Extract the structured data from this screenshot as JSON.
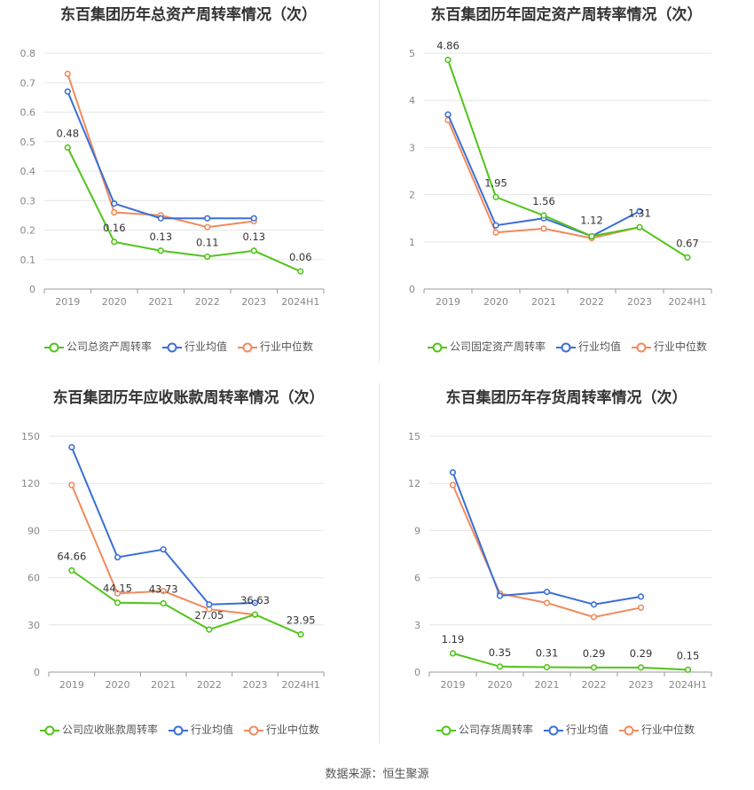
{
  "source": "数据来源：恒生聚源",
  "colors": {
    "company": "#52c41a",
    "avg": "#3a6fd8",
    "median": "#f08a5d"
  },
  "charts": [
    {
      "id": "c1",
      "title": "东百集团历年总资产周转率情况（次）",
      "legend": [
        "公司总资产周转率",
        "行业均值",
        "行业中位数"
      ]
    },
    {
      "id": "c2",
      "title": "东百集团历年固定资产周转率情况（次）",
      "legend": [
        "公司固定资产周转率",
        "行业均值",
        "行业中位数"
      ]
    },
    {
      "id": "c3",
      "title": "东百集团历年应收账款周转率情况（次）",
      "legend": [
        "公司应收账款周转率",
        "行业均值",
        "行业中位数"
      ]
    },
    {
      "id": "c4",
      "title": "东百集团历年存货周转率情况（次）",
      "legend": [
        "公司存货周转率",
        "行业均值",
        "行业中位数"
      ]
    }
  ],
  "chart_data": [
    {
      "type": "line",
      "title": "东百集团历年总资产周转率情况（次）",
      "categories": [
        "2019",
        "2020",
        "2021",
        "2022",
        "2023",
        "2024H1"
      ],
      "ylim": [
        0,
        0.8
      ],
      "yticks": [
        "0",
        "0.1",
        "0.2",
        "0.3",
        "0.4",
        "0.5",
        "0.6",
        "0.7",
        "0.8"
      ],
      "series": [
        {
          "name": "公司总资产周转率",
          "values": [
            0.48,
            0.16,
            0.13,
            0.11,
            0.13,
            0.06
          ],
          "labels": [
            "0.48",
            "0.16",
            "0.13",
            "0.11",
            "0.13",
            "0.06"
          ]
        },
        {
          "name": "行业均值",
          "values": [
            0.67,
            0.29,
            0.24,
            0.24,
            0.24,
            null
          ]
        },
        {
          "name": "行业中位数",
          "values": [
            0.73,
            0.26,
            0.25,
            0.21,
            0.23,
            null
          ]
        }
      ]
    },
    {
      "type": "line",
      "title": "东百集团历年固定资产周转率情况（次）",
      "categories": [
        "2019",
        "2020",
        "2021",
        "2022",
        "2023",
        "2024H1"
      ],
      "ylim": [
        0,
        5
      ],
      "yticks": [
        "0",
        "1",
        "2",
        "3",
        "4",
        "5"
      ],
      "series": [
        {
          "name": "公司固定资产周转率",
          "values": [
            4.86,
            1.95,
            1.56,
            1.12,
            1.31,
            0.67
          ],
          "labels": [
            "4.86",
            "1.95",
            "1.56",
            "1.12",
            "1.31",
            "0.67"
          ]
        },
        {
          "name": "行业均值",
          "values": [
            3.7,
            1.35,
            1.5,
            1.12,
            1.65,
            null
          ]
        },
        {
          "name": "行业中位数",
          "values": [
            3.58,
            1.2,
            1.28,
            1.08,
            1.31,
            null
          ]
        }
      ]
    },
    {
      "type": "line",
      "title": "东百集团历年应收账款周转率情况（次）",
      "categories": [
        "2019",
        "2020",
        "2021",
        "2022",
        "2023",
        "2024H1"
      ],
      "ylim": [
        0,
        150
      ],
      "yticks": [
        "0",
        "30",
        "60",
        "90",
        "120",
        "150"
      ],
      "series": [
        {
          "name": "公司应收账款周转率",
          "values": [
            64.66,
            44.15,
            43.73,
            27.05,
            36.63,
            23.95
          ],
          "labels": [
            "64.66",
            "44.15",
            "43.73",
            "27.05",
            "36.63",
            "23.95"
          ]
        },
        {
          "name": "行业均值",
          "values": [
            143,
            73,
            78,
            43,
            44,
            null
          ]
        },
        {
          "name": "行业中位数",
          "values": [
            119,
            50,
            51.5,
            40,
            36.5,
            null
          ]
        }
      ]
    },
    {
      "type": "line",
      "title": "东百集团历年存货周转率情况（次）",
      "categories": [
        "2019",
        "2020",
        "2021",
        "2022",
        "2023",
        "2024H1"
      ],
      "ylim": [
        0,
        15
      ],
      "yticks": [
        "0",
        "3",
        "6",
        "9",
        "12",
        "15"
      ],
      "series": [
        {
          "name": "公司存货周转率",
          "values": [
            1.19,
            0.35,
            0.31,
            0.29,
            0.29,
            0.15
          ],
          "labels": [
            "1.19",
            "0.35",
            "0.31",
            "0.29",
            "0.29",
            "0.15"
          ]
        },
        {
          "name": "行业均值",
          "values": [
            12.7,
            4.85,
            5.1,
            4.3,
            4.8,
            null
          ]
        },
        {
          "name": "行业中位数",
          "values": [
            11.9,
            5.0,
            4.4,
            3.5,
            4.1,
            null
          ]
        }
      ]
    }
  ]
}
